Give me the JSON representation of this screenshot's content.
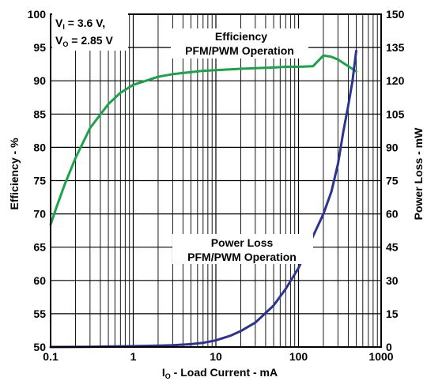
{
  "chart_data": {
    "type": "line",
    "xscale": "log",
    "xlim": [
      0.1,
      1000
    ],
    "ylim_left": [
      50,
      100
    ],
    "ylim_right": [
      0,
      150
    ],
    "grid": true,
    "x_ticks": [
      "0.1",
      "1",
      "10",
      "100",
      "1000"
    ],
    "y_left_ticks": [
      "50",
      "55",
      "60",
      "65",
      "70",
      "75",
      "80",
      "85",
      "90",
      "95",
      "100"
    ],
    "y_right_ticks": [
      "0",
      "15",
      "30",
      "45",
      "60",
      "75",
      "90",
      "105",
      "120",
      "135",
      "150"
    ],
    "xlabel": {
      "main": "I",
      "sub": "O",
      "rest": " - Load Current - mA"
    },
    "ylabel_left": "Efficiency - %",
    "ylabel_right": "Power Loss - mW",
    "conditions": {
      "line1": {
        "main": "V",
        "sub": "I",
        "rest": " = 3.6 V,"
      },
      "line2": {
        "main": "V",
        "sub": "O",
        "rest": " = 2.85 V"
      }
    },
    "annotations": {
      "efficiency": [
        "Efficiency",
        "PFM/PWM Operation"
      ],
      "power_loss": [
        "Power Loss",
        "PFM/PWM Operation"
      ]
    },
    "series": [
      {
        "name": "Efficiency",
        "axis": "left",
        "color": "#1aa34a",
        "x": [
          0.1,
          0.12,
          0.15,
          0.2,
          0.3,
          0.5,
          0.7,
          1,
          1.5,
          2,
          3,
          5,
          7,
          10,
          20,
          30,
          50,
          70,
          100,
          150,
          170,
          200,
          250,
          300,
          400,
          500
        ],
        "y": [
          68.4,
          71.3,
          74.6,
          78.4,
          82.9,
          86.5,
          88.2,
          89.4,
          90.1,
          90.6,
          91.0,
          91.3,
          91.5,
          91.6,
          91.8,
          91.9,
          92.0,
          92.1,
          92.1,
          92.2,
          92.9,
          93.8,
          93.6,
          93.2,
          92.2,
          91.4
        ]
      },
      {
        "name": "Power Loss",
        "axis": "right",
        "color": "#2b3591",
        "x": [
          0.1,
          0.3,
          1,
          2,
          3,
          5,
          7,
          10,
          15,
          20,
          30,
          50,
          70,
          100,
          150,
          200,
          250,
          300,
          350,
          400,
          450,
          500
        ],
        "y": [
          0,
          0.1,
          0.4,
          0.6,
          0.8,
          1.3,
          1.9,
          3.0,
          5.1,
          7.2,
          11.0,
          18.7,
          26.2,
          35.6,
          50.0,
          60.0,
          70.0,
          82.5,
          97.5,
          108.8,
          120.0,
          133.5
        ]
      }
    ]
  }
}
